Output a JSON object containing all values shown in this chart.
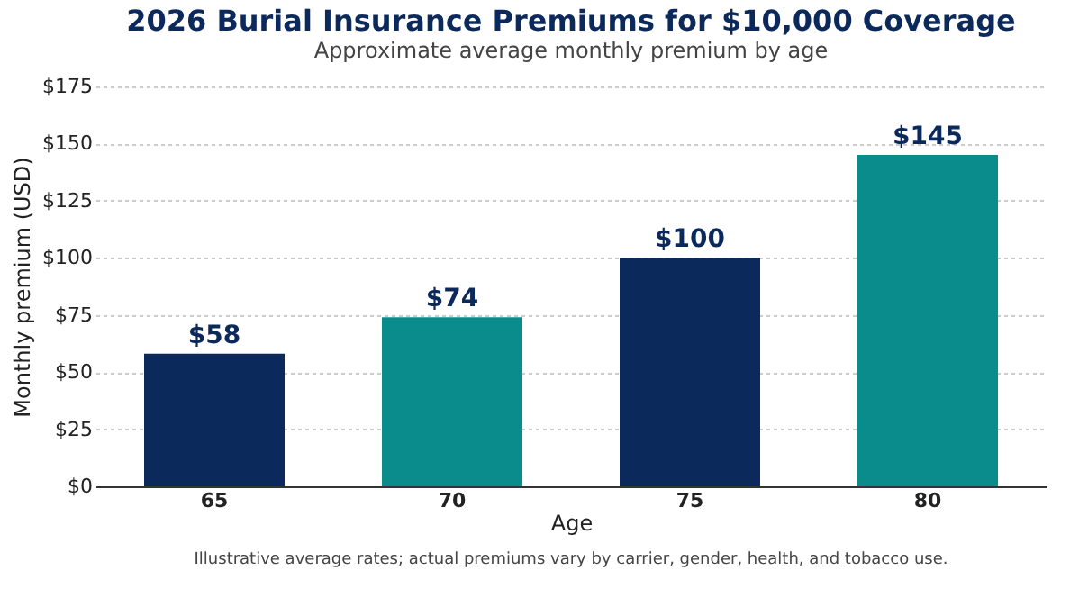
{
  "chart_data": {
    "type": "bar",
    "title": "2026 Burial Insurance Premiums for $10,000 Coverage",
    "subtitle": "Approximate average monthly premium by age",
    "xlabel": "Age",
    "ylabel": "Monthly premium (USD)",
    "categories": [
      "65",
      "70",
      "75",
      "80"
    ],
    "values": [
      58,
      74,
      100,
      145
    ],
    "colors": [
      "#0b2a5b",
      "#0a8c8c",
      "#0b2a5b",
      "#0a8c8c"
    ],
    "value_labels": [
      "$58",
      "$74",
      "$100",
      "$145"
    ],
    "ylim": [
      0,
      175
    ],
    "yticks": [
      {
        "value": 0,
        "label": "$0"
      },
      {
        "value": 25,
        "label": "$25"
      },
      {
        "value": 50,
        "label": "$50"
      },
      {
        "value": 75,
        "label": "$75"
      },
      {
        "value": 100,
        "label": "$100"
      },
      {
        "value": 125,
        "label": "$125"
      },
      {
        "value": 150,
        "label": "$150"
      },
      {
        "value": 175,
        "label": "$175"
      }
    ],
    "grid": "y",
    "annotations": [
      "Illustrative average rates; actual premiums vary by carrier, gender, health, and tobacco use."
    ]
  }
}
